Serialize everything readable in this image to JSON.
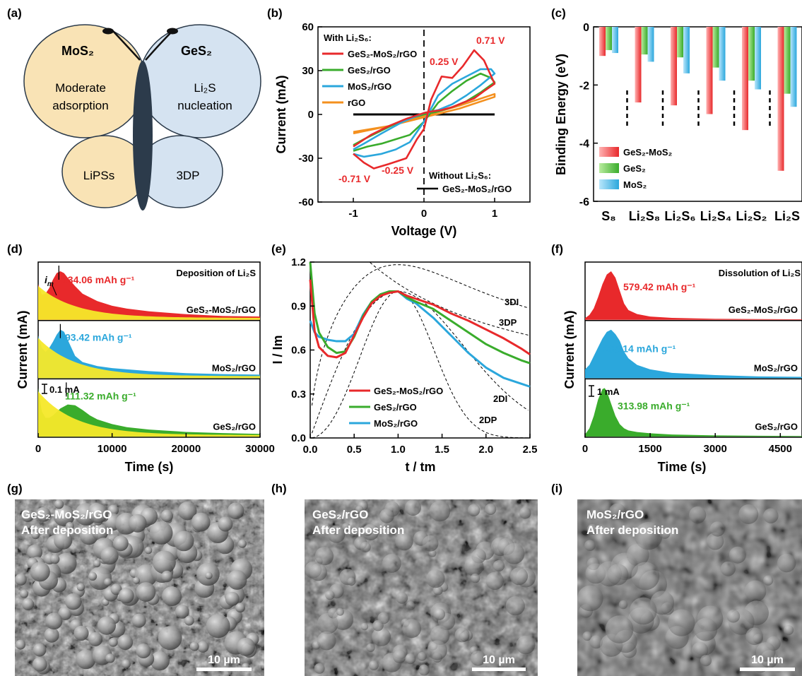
{
  "figure": {
    "panel_labels": [
      "(a)",
      "(b)",
      "(c)",
      "(d)",
      "(e)",
      "(f)",
      "(g)",
      "(h)",
      "(i)"
    ],
    "colors": {
      "red": "#e8292b",
      "green": "#3aac2c",
      "blue": "#2ba7dc",
      "orange": "#f4901e",
      "yellow": "#f5e829",
      "wing_yellow": "#f9e3b5",
      "wing_blue": "#d5e3f1",
      "body": "#2c3b4b"
    }
  },
  "panel_a": {
    "mos2": "MoS₂",
    "ges2": "GeS₂",
    "moderate": "Moderate",
    "adsorption": "adsorption",
    "li2s": "Li₂S",
    "nucleation": "nucleation",
    "lipss": "LiPSs",
    "threedp": "3DP"
  },
  "panel_g": {
    "line1": "GeS₂-MoS₂/rGO",
    "line2": "After deposition",
    "scalebar": "10 µm"
  },
  "panel_h": {
    "line1": "GeS₂/rGO",
    "line2": "After deposition",
    "scalebar": "10 µm"
  },
  "panel_i": {
    "line1": "MoS₂/rGO",
    "line2": "After deposition",
    "scalebar": "10 µm"
  },
  "chart_data": [
    {
      "id": "b",
      "type": "line",
      "xlabel": "Voltage (V)",
      "ylabel": "Current (mA)",
      "xlim": [
        -1.5,
        1.5
      ],
      "ylim": [
        -60,
        60
      ],
      "xticks": [
        -1,
        0,
        1
      ],
      "yticks": [
        -60,
        -30,
        0,
        30,
        60
      ],
      "legend_title": "With Li₂S₆:",
      "legend_placement": "top-left",
      "annotations": [
        "0.71 V",
        "0.25 V",
        "-0.71 V",
        "-0.25 V"
      ],
      "without_label": "Without Li₂S₆:",
      "without_series": "GeS₂-MoS₂/rGO",
      "series": [
        {
          "name": "GeS₂-MoS₂/rGO",
          "color": "#e8292b",
          "x": [
            -1,
            -0.85,
            -0.71,
            -0.5,
            -0.25,
            -0.1,
            0,
            0.1,
            0.25,
            0.4,
            0.55,
            0.71,
            0.85,
            1,
            1,
            0.85,
            0.71,
            0.55,
            0.4,
            0.25,
            0.1,
            0,
            -0.25,
            -0.5,
            -0.75,
            -1
          ],
          "y": [
            -27,
            -33,
            -37,
            -34,
            -30,
            -17,
            -10,
            10,
            26,
            25,
            33,
            44,
            37,
            21,
            21,
            16,
            11,
            8,
            5,
            3,
            2,
            1,
            -3,
            -8,
            -14,
            -22
          ]
        },
        {
          "name": "GeS₂/rGO",
          "color": "#3aac2c",
          "x": [
            -1,
            -0.8,
            -0.6,
            -0.4,
            -0.2,
            0,
            0.2,
            0.4,
            0.6,
            0.8,
            0.95,
            1,
            1,
            0.8,
            0.6,
            0.4,
            0.2,
            0,
            -0.3,
            -0.6,
            -0.85,
            -1
          ],
          "y": [
            -25,
            -22,
            -20,
            -17,
            -14,
            -5,
            8,
            16,
            23,
            28,
            25,
            22,
            22,
            15,
            9,
            5,
            2,
            0,
            -4,
            -11,
            -17,
            -21
          ]
        },
        {
          "name": "MoS₂/rGO",
          "color": "#2ba7dc",
          "x": [
            -1,
            -0.85,
            -0.6,
            -0.4,
            -0.2,
            0,
            0.2,
            0.4,
            0.6,
            0.8,
            0.95,
            1,
            1,
            0.8,
            0.6,
            0.4,
            0.2,
            0,
            -0.3,
            -0.6,
            -0.85,
            -1
          ],
          "y": [
            -27,
            -29,
            -27,
            -24,
            -19,
            -5,
            13,
            21,
            26,
            31,
            31,
            28,
            28,
            20,
            13,
            7,
            3,
            1,
            -5,
            -13,
            -20,
            -24
          ]
        },
        {
          "name": "rGO",
          "color": "#f4901e",
          "x": [
            -1,
            -0.5,
            0,
            0.5,
            1,
            1,
            0.5,
            0,
            -0.5,
            -1
          ],
          "y": [
            -13,
            -8,
            -1,
            6,
            14,
            12,
            4,
            -2,
            -8,
            -12
          ]
        },
        {
          "name": "GeS₂-MoS₂/rGO (without Li₂S₆)",
          "color": "#000000",
          "x": [
            -1,
            1
          ],
          "y": [
            0,
            0
          ]
        }
      ]
    },
    {
      "id": "c",
      "type": "bar",
      "ylabel": "Binding Energy (eV)",
      "ylim": [
        -6,
        0
      ],
      "yticks": [
        0,
        -2,
        -4,
        -6
      ],
      "categories": [
        "S₈",
        "Li₂S₈",
        "Li₂S₆",
        "Li₂S₄",
        "Li₂S₂",
        "Li₂S"
      ],
      "legend_placement": "bottom-left",
      "series": [
        {
          "name": "GeS₂-MoS₂",
          "color": "#e8292b",
          "values": [
            -1.0,
            -2.6,
            -2.7,
            -3.0,
            -3.55,
            -4.95
          ]
        },
        {
          "name": "GeS₂",
          "color": "#3aac2c",
          "values": [
            -0.8,
            -0.95,
            -1.05,
            -1.4,
            -1.85,
            -2.3
          ]
        },
        {
          "name": "MoS₂",
          "color": "#2ba7dc",
          "values": [
            -0.9,
            -1.2,
            -1.6,
            -1.85,
            -2.15,
            -2.75
          ]
        }
      ]
    },
    {
      "id": "d",
      "type": "area",
      "xlabel": "Time (s)",
      "ylabel": "Current (mA)",
      "xlim": [
        0,
        30000
      ],
      "xticks": [
        0,
        10000,
        20000,
        30000
      ],
      "title": "Deposition of Li₂S",
      "scalebar": "0.1 mA",
      "im_label": "i",
      "im_sub": "m",
      "series": [
        {
          "name": "GeS₂-MoS₂/rGO",
          "color": "#e8292b",
          "label": "134.06 mAh g⁻¹",
          "x": [
            0,
            500,
            1000,
            1500,
            2000,
            2500,
            3000,
            3500,
            4000,
            5000,
            6000,
            8000,
            10000,
            12000,
            15000,
            20000,
            25000,
            30000
          ],
          "y": [
            0.38,
            0.27,
            0.28,
            0.34,
            0.43,
            0.5,
            0.52,
            0.5,
            0.45,
            0.36,
            0.28,
            0.2,
            0.15,
            0.12,
            0.09,
            0.06,
            0.04,
            0.035
          ]
        },
        {
          "name": "MoS₂/rGO",
          "color": "#2ba7dc",
          "label": "93.42 mAh g⁻¹",
          "x": [
            0,
            500,
            1000,
            1500,
            2000,
            2500,
            3000,
            3500,
            4000,
            4500,
            5000,
            6000,
            8000,
            10000,
            15000,
            20000,
            25000,
            30000
          ],
          "y": [
            0.42,
            0.3,
            0.26,
            0.3,
            0.36,
            0.43,
            0.48,
            0.46,
            0.38,
            0.3,
            0.22,
            0.16,
            0.12,
            0.1,
            0.07,
            0.05,
            0.04,
            0.035
          ]
        },
        {
          "name": "GeS₂/rGO",
          "color": "#3aac2c",
          "label": "111.32 mAh g⁻¹",
          "x": [
            0,
            500,
            1000,
            1500,
            2000,
            3000,
            4000,
            5000,
            6000,
            7000,
            8000,
            10000,
            12000,
            15000,
            20000,
            25000,
            30000
          ],
          "y": [
            0.62,
            0.32,
            0.24,
            0.24,
            0.27,
            0.36,
            0.41,
            0.4,
            0.34,
            0.27,
            0.22,
            0.16,
            0.12,
            0.09,
            0.06,
            0.045,
            0.035
          ]
        }
      ]
    },
    {
      "id": "e",
      "type": "line",
      "xlabel": "t / tm",
      "ylabel": "I / Im",
      "xlim": [
        0,
        2.5
      ],
      "ylim": [
        0,
        1.2
      ],
      "xticks": [
        0.0,
        0.5,
        1.0,
        1.5,
        2.0,
        2.5
      ],
      "yticks": [
        0.0,
        0.3,
        0.6,
        0.9,
        1.2
      ],
      "legend_placement": "center",
      "model_labels": [
        "3DI",
        "3DP",
        "2DI",
        "2DP"
      ],
      "series": [
        {
          "name": "GeS₂-MoS₂/rGO",
          "color": "#e8292b",
          "x": [
            0,
            0.05,
            0.1,
            0.2,
            0.3,
            0.4,
            0.5,
            0.6,
            0.7,
            0.8,
            0.9,
            1.0,
            1.1,
            1.2,
            1.4,
            1.6,
            1.8,
            2.0,
            2.2,
            2.4,
            2.5
          ],
          "y": [
            1.08,
            0.73,
            0.62,
            0.56,
            0.55,
            0.58,
            0.7,
            0.82,
            0.92,
            0.97,
            0.99,
            1.0,
            0.97,
            0.95,
            0.91,
            0.85,
            0.8,
            0.74,
            0.68,
            0.61,
            0.57
          ]
        },
        {
          "name": "GeS₂/rGO",
          "color": "#3aac2c",
          "x": [
            0,
            0.05,
            0.1,
            0.2,
            0.3,
            0.4,
            0.5,
            0.6,
            0.7,
            0.8,
            0.9,
            1.0,
            1.1,
            1.2,
            1.4,
            1.6,
            1.8,
            2.0,
            2.2,
            2.4,
            2.5
          ],
          "y": [
            1.2,
            0.85,
            0.72,
            0.62,
            0.58,
            0.59,
            0.69,
            0.83,
            0.93,
            0.98,
            1.0,
            1.0,
            0.96,
            0.93,
            0.88,
            0.8,
            0.72,
            0.64,
            0.58,
            0.53,
            0.51
          ]
        },
        {
          "name": "MoS₂/rGO",
          "color": "#2ba7dc",
          "x": [
            0,
            0.05,
            0.1,
            0.2,
            0.3,
            0.4,
            0.5,
            0.6,
            0.7,
            0.8,
            0.9,
            1.0,
            1.1,
            1.2,
            1.4,
            1.6,
            1.8,
            2.0,
            2.2,
            2.4,
            2.5
          ],
          "y": [
            0.8,
            0.72,
            0.69,
            0.67,
            0.66,
            0.66,
            0.71,
            0.84,
            0.93,
            0.98,
            1.0,
            1.0,
            0.95,
            0.92,
            0.82,
            0.7,
            0.58,
            0.48,
            0.41,
            0.37,
            0.35
          ]
        }
      ]
    },
    {
      "id": "f",
      "type": "area",
      "xlabel": "Time (s)",
      "ylabel": "Current (mA)",
      "xlim": [
        0,
        5000
      ],
      "xticks": [
        0,
        1500,
        3000,
        4500
      ],
      "title": "Dissolution of Li₂S",
      "scalebar": "1 mA",
      "series": [
        {
          "name": "GeS₂-MoS₂/rGO",
          "color": "#e8292b",
          "label": "579.42 mAh g⁻¹",
          "x": [
            0,
            100,
            200,
            300,
            400,
            500,
            600,
            700,
            800,
            900,
            1000,
            1200,
            1500,
            2000,
            3000,
            4000,
            5000
          ],
          "y": [
            0.1,
            0.3,
            0.7,
            1.4,
            2.2,
            2.8,
            3.0,
            2.6,
            1.8,
            1.0,
            0.6,
            0.35,
            0.2,
            0.12,
            0.06,
            0.04,
            0.03
          ]
        },
        {
          "name": "MoS₂/rGO",
          "color": "#2ba7dc",
          "label": "285.14 mAh g⁻¹",
          "x": [
            0,
            100,
            200,
            300,
            400,
            500,
            600,
            700,
            800,
            900,
            1000,
            1200,
            1500,
            2000,
            3000,
            4000,
            5000
          ],
          "y": [
            0.2,
            0.3,
            0.5,
            0.7,
            0.9,
            1.05,
            1.1,
            1.0,
            0.85,
            0.6,
            0.45,
            0.3,
            0.2,
            0.12,
            0.07,
            0.04,
            0.03
          ]
        },
        {
          "name": "GeS₂/rGO",
          "color": "#3aac2c",
          "label": "313.98 mAh g⁻¹",
          "x": [
            0,
            100,
            200,
            300,
            400,
            450,
            500,
            600,
            700,
            800,
            900,
            1000,
            1200,
            1500,
            2000,
            3000,
            4000,
            5000
          ],
          "y": [
            0.1,
            0.4,
            1.0,
            1.8,
            2.3,
            2.35,
            2.2,
            1.6,
            1.0,
            0.6,
            0.4,
            0.3,
            0.22,
            0.16,
            0.1,
            0.06,
            0.04,
            0.03
          ]
        }
      ]
    }
  ]
}
